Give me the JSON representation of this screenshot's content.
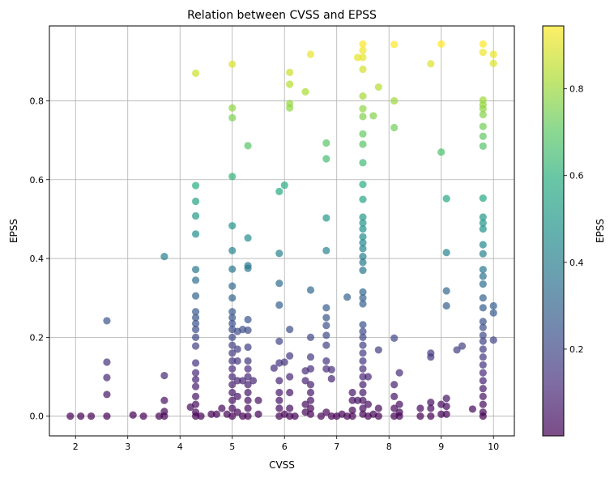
{
  "chart_data": {
    "type": "scatter",
    "title": "Relation between CVSS and EPSS",
    "xlabel": "CVSS",
    "ylabel": "EPSS",
    "xlim": [
      1.5,
      10.4
    ],
    "ylim": [
      -0.05,
      0.99
    ],
    "xticks": [
      2,
      3,
      4,
      5,
      6,
      7,
      8,
      9,
      10
    ],
    "yticks": [
      0.0,
      0.2,
      0.4,
      0.6,
      0.8
    ],
    "xtick_labels": [
      "2",
      "3",
      "4",
      "5",
      "6",
      "7",
      "8",
      "9",
      "10"
    ],
    "ytick_labels": [
      "0.0",
      "0.2",
      "0.4",
      "0.6",
      "0.8"
    ],
    "grid": true,
    "colormap": "viridis",
    "point_alpha": 0.7,
    "colorbar": {
      "label": "EPSS",
      "range": [
        0.0,
        0.945
      ],
      "ticks": [
        0.2,
        0.4,
        0.6,
        0.8
      ],
      "tick_labels": [
        "0.2",
        "0.4",
        "0.6",
        "0.8"
      ]
    },
    "points": [
      [
        1.9,
        0.0
      ],
      [
        2.1,
        0.0
      ],
      [
        2.3,
        0.0
      ],
      [
        2.6,
        0.0
      ],
      [
        3.1,
        0.003
      ],
      [
        3.3,
        0.0
      ],
      [
        3.6,
        0.0
      ],
      [
        3.7,
        0.0
      ],
      [
        2.6,
        0.242
      ],
      [
        2.6,
        0.137
      ],
      [
        2.6,
        0.098
      ],
      [
        2.6,
        0.055
      ],
      [
        3.7,
        0.405
      ],
      [
        3.7,
        0.103
      ],
      [
        3.7,
        0.04
      ],
      [
        3.7,
        0.012
      ],
      [
        4.2,
        0.023
      ],
      [
        4.3,
        0.87
      ],
      [
        4.3,
        0.585
      ],
      [
        4.3,
        0.545
      ],
      [
        4.3,
        0.508
      ],
      [
        4.3,
        0.462
      ],
      [
        4.3,
        0.372
      ],
      [
        4.3,
        0.345
      ],
      [
        4.3,
        0.305
      ],
      [
        4.3,
        0.265
      ],
      [
        4.3,
        0.25
      ],
      [
        4.3,
        0.235
      ],
      [
        4.3,
        0.22
      ],
      [
        4.3,
        0.2
      ],
      [
        4.3,
        0.178
      ],
      [
        4.3,
        0.135
      ],
      [
        4.3,
        0.11
      ],
      [
        4.3,
        0.093
      ],
      [
        4.3,
        0.075
      ],
      [
        4.3,
        0.05
      ],
      [
        4.3,
        0.03
      ],
      [
        4.3,
        0.01
      ],
      [
        4.3,
        0.0
      ],
      [
        4.4,
        0.0
      ],
      [
        4.6,
        0.005
      ],
      [
        4.7,
        0.005
      ],
      [
        4.8,
        0.02
      ],
      [
        4.9,
        0.005
      ],
      [
        5.0,
        0.893
      ],
      [
        5.0,
        0.782
      ],
      [
        5.0,
        0.757
      ],
      [
        5.0,
        0.608
      ],
      [
        5.0,
        0.483
      ],
      [
        5.0,
        0.42
      ],
      [
        5.0,
        0.373
      ],
      [
        5.0,
        0.33
      ],
      [
        5.0,
        0.3
      ],
      [
        5.0,
        0.265
      ],
      [
        5.0,
        0.25
      ],
      [
        5.0,
        0.235
      ],
      [
        5.0,
        0.22
      ],
      [
        5.0,
        0.2
      ],
      [
        5.0,
        0.18
      ],
      [
        5.0,
        0.16
      ],
      [
        5.0,
        0.14
      ],
      [
        5.0,
        0.12
      ],
      [
        5.0,
        0.1
      ],
      [
        5.0,
        0.08
      ],
      [
        5.0,
        0.06
      ],
      [
        5.0,
        0.04
      ],
      [
        5.0,
        0.02
      ],
      [
        5.0,
        0.0
      ],
      [
        5.1,
        0.215
      ],
      [
        5.1,
        0.17
      ],
      [
        5.1,
        0.14
      ],
      [
        5.1,
        0.09
      ],
      [
        5.1,
        0.05
      ],
      [
        5.1,
        0.01
      ],
      [
        5.2,
        0.22
      ],
      [
        5.2,
        0.09
      ],
      [
        5.2,
        0.0
      ],
      [
        5.3,
        0.686
      ],
      [
        5.3,
        0.452
      ],
      [
        5.3,
        0.382
      ],
      [
        5.3,
        0.375
      ],
      [
        5.3,
        0.245
      ],
      [
        5.3,
        0.218
      ],
      [
        5.3,
        0.175
      ],
      [
        5.3,
        0.14
      ],
      [
        5.3,
        0.12
      ],
      [
        5.3,
        0.1
      ],
      [
        5.3,
        0.08
      ],
      [
        5.3,
        0.06
      ],
      [
        5.3,
        0.04
      ],
      [
        5.3,
        0.02
      ],
      [
        5.3,
        0.0
      ],
      [
        5.4,
        0.09
      ],
      [
        5.5,
        0.04
      ],
      [
        5.5,
        0.005
      ],
      [
        5.8,
        0.122
      ],
      [
        5.9,
        0.57
      ],
      [
        5.9,
        0.413
      ],
      [
        5.9,
        0.337
      ],
      [
        5.9,
        0.282
      ],
      [
        5.9,
        0.19
      ],
      [
        5.9,
        0.135
      ],
      [
        5.9,
        0.09
      ],
      [
        5.9,
        0.06
      ],
      [
        5.9,
        0.04
      ],
      [
        5.9,
        0.02
      ],
      [
        5.9,
        0.0
      ],
      [
        6.0,
        0.586
      ],
      [
        6.0,
        0.137
      ],
      [
        6.0,
        0.005
      ],
      [
        6.1,
        0.872
      ],
      [
        6.1,
        0.842
      ],
      [
        6.1,
        0.793
      ],
      [
        6.1,
        0.782
      ],
      [
        6.1,
        0.22
      ],
      [
        6.1,
        0.153
      ],
      [
        6.1,
        0.1
      ],
      [
        6.1,
        0.06
      ],
      [
        6.1,
        0.02
      ],
      [
        6.1,
        0.0
      ],
      [
        6.2,
        0.0
      ],
      [
        6.4,
        0.823
      ],
      [
        6.4,
        0.115
      ],
      [
        6.4,
        0.09
      ],
      [
        6.4,
        0.03
      ],
      [
        6.4,
        0.01
      ],
      [
        6.5,
        0.918
      ],
      [
        6.5,
        0.32
      ],
      [
        6.5,
        0.2
      ],
      [
        6.5,
        0.15
      ],
      [
        6.5,
        0.12
      ],
      [
        6.5,
        0.08
      ],
      [
        6.5,
        0.06
      ],
      [
        6.5,
        0.04
      ],
      [
        6.5,
        0.02
      ],
      [
        6.5,
        0.005
      ],
      [
        6.7,
        0.0
      ],
      [
        6.8,
        0.693
      ],
      [
        6.8,
        0.653
      ],
      [
        6.8,
        0.503
      ],
      [
        6.8,
        0.42
      ],
      [
        6.8,
        0.275
      ],
      [
        6.8,
        0.25
      ],
      [
        6.8,
        0.23
      ],
      [
        6.8,
        0.205
      ],
      [
        6.8,
        0.18
      ],
      [
        6.8,
        0.14
      ],
      [
        6.8,
        0.12
      ],
      [
        6.8,
        0.01
      ],
      [
        6.9,
        0.118
      ],
      [
        6.9,
        0.095
      ],
      [
        6.9,
        0.0
      ],
      [
        7.0,
        0.0
      ],
      [
        7.1,
        0.005
      ],
      [
        7.2,
        0.302
      ],
      [
        7.2,
        0.0
      ],
      [
        7.3,
        0.06
      ],
      [
        7.3,
        0.04
      ],
      [
        7.3,
        0.015
      ],
      [
        7.3,
        0.0
      ],
      [
        7.4,
        0.91
      ],
      [
        7.4,
        0.04
      ],
      [
        7.5,
        0.944
      ],
      [
        7.5,
        0.928
      ],
      [
        7.5,
        0.91
      ],
      [
        7.5,
        0.88
      ],
      [
        7.5,
        0.812
      ],
      [
        7.5,
        0.78
      ],
      [
        7.5,
        0.76
      ],
      [
        7.5,
        0.716
      ],
      [
        7.5,
        0.69
      ],
      [
        7.5,
        0.643
      ],
      [
        7.5,
        0.588
      ],
      [
        7.5,
        0.55
      ],
      [
        7.5,
        0.505
      ],
      [
        7.5,
        0.49
      ],
      [
        7.5,
        0.475
      ],
      [
        7.5,
        0.455
      ],
      [
        7.5,
        0.44
      ],
      [
        7.5,
        0.425
      ],
      [
        7.5,
        0.405
      ],
      [
        7.5,
        0.39
      ],
      [
        7.5,
        0.37
      ],
      [
        7.5,
        0.315
      ],
      [
        7.5,
        0.3
      ],
      [
        7.5,
        0.285
      ],
      [
        7.5,
        0.232
      ],
      [
        7.5,
        0.215
      ],
      [
        7.5,
        0.2
      ],
      [
        7.5,
        0.18
      ],
      [
        7.5,
        0.16
      ],
      [
        7.5,
        0.14
      ],
      [
        7.5,
        0.12
      ],
      [
        7.5,
        0.1
      ],
      [
        7.5,
        0.08
      ],
      [
        7.5,
        0.06
      ],
      [
        7.5,
        0.04
      ],
      [
        7.5,
        0.02
      ],
      [
        7.5,
        0.005
      ],
      [
        7.6,
        0.1
      ],
      [
        7.6,
        0.03
      ],
      [
        7.6,
        0.0
      ],
      [
        7.7,
        0.762
      ],
      [
        7.7,
        0.005
      ],
      [
        7.8,
        0.835
      ],
      [
        7.8,
        0.168
      ],
      [
        7.8,
        0.02
      ],
      [
        7.8,
        0.0
      ],
      [
        8.1,
        0.943
      ],
      [
        8.1,
        0.8
      ],
      [
        8.1,
        0.732
      ],
      [
        8.1,
        0.198
      ],
      [
        8.1,
        0.08
      ],
      [
        8.1,
        0.05
      ],
      [
        8.1,
        0.02
      ],
      [
        8.1,
        0.0
      ],
      [
        8.2,
        0.11
      ],
      [
        8.2,
        0.03
      ],
      [
        8.2,
        0.01
      ],
      [
        8.2,
        0.0
      ],
      [
        8.6,
        0.02
      ],
      [
        8.6,
        0.0
      ],
      [
        8.8,
        0.894
      ],
      [
        8.8,
        0.16
      ],
      [
        8.8,
        0.15
      ],
      [
        8.8,
        0.035
      ],
      [
        8.8,
        0.02
      ],
      [
        8.8,
        0.0
      ],
      [
        9.0,
        0.944
      ],
      [
        9.0,
        0.67
      ],
      [
        9.0,
        0.03
      ],
      [
        9.0,
        0.005
      ],
      [
        9.1,
        0.552
      ],
      [
        9.1,
        0.415
      ],
      [
        9.1,
        0.318
      ],
      [
        9.1,
        0.28
      ],
      [
        9.1,
        0.045
      ],
      [
        9.1,
        0.025
      ],
      [
        9.1,
        0.005
      ],
      [
        9.3,
        0.168
      ],
      [
        9.4,
        0.178
      ],
      [
        9.6,
        0.018
      ],
      [
        9.8,
        0.944
      ],
      [
        9.8,
        0.923
      ],
      [
        9.8,
        0.802
      ],
      [
        9.8,
        0.79
      ],
      [
        9.8,
        0.78
      ],
      [
        9.8,
        0.765
      ],
      [
        9.8,
        0.735
      ],
      [
        9.8,
        0.71
      ],
      [
        9.8,
        0.685
      ],
      [
        9.8,
        0.553
      ],
      [
        9.8,
        0.505
      ],
      [
        9.8,
        0.49
      ],
      [
        9.8,
        0.475
      ],
      [
        9.8,
        0.435
      ],
      [
        9.8,
        0.412
      ],
      [
        9.8,
        0.372
      ],
      [
        9.8,
        0.355
      ],
      [
        9.8,
        0.335
      ],
      [
        9.8,
        0.3
      ],
      [
        9.8,
        0.275
      ],
      [
        9.8,
        0.24
      ],
      [
        9.8,
        0.225
      ],
      [
        9.8,
        0.205
      ],
      [
        9.8,
        0.19
      ],
      [
        9.8,
        0.17
      ],
      [
        9.8,
        0.15
      ],
      [
        9.8,
        0.13
      ],
      [
        9.8,
        0.11
      ],
      [
        9.8,
        0.09
      ],
      [
        9.8,
        0.07
      ],
      [
        9.8,
        0.05
      ],
      [
        9.8,
        0.03
      ],
      [
        9.8,
        0.01
      ],
      [
        9.8,
        0.0
      ],
      [
        10.0,
        0.918
      ],
      [
        10.0,
        0.895
      ],
      [
        10.0,
        0.28
      ],
      [
        10.0,
        0.262
      ],
      [
        10.0,
        0.193
      ]
    ]
  }
}
